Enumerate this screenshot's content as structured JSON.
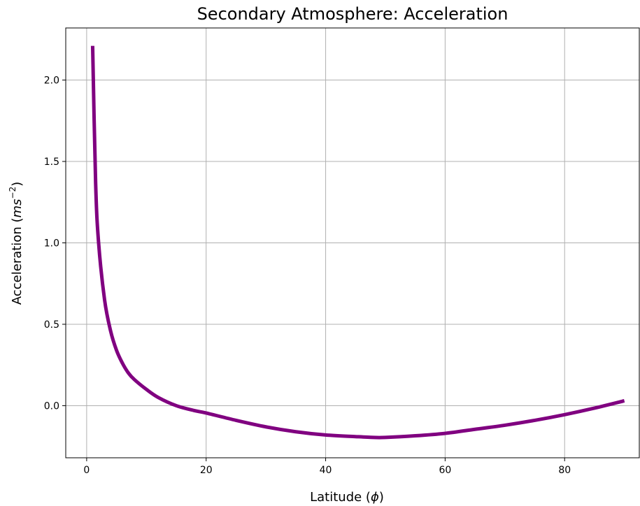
{
  "chart_data": {
    "type": "line",
    "title": "Secondary Atmosphere: Acceleration",
    "xlabel_text": "Latitude (",
    "xlabel_symbol": "ϕ",
    "xlabel_close": ")",
    "ylabel_text": "Acceleration (",
    "ylabel_unit": "ms",
    "ylabel_exp": "−2",
    "ylabel_close": ")",
    "xlim": [
      -3.5,
      92.5
    ],
    "ylim": [
      -0.32,
      2.32
    ],
    "xticks": [
      0,
      20,
      40,
      60,
      80
    ],
    "xtick_labels": [
      "0",
      "20",
      "40",
      "60",
      "80"
    ],
    "yticks": [
      0.0,
      0.5,
      1.0,
      1.5,
      2.0
    ],
    "ytick_labels": [
      "0.0",
      "0.5",
      "1.0",
      "1.5",
      "2.0"
    ],
    "grid": true,
    "series": [
      {
        "color": "#800080",
        "x": [
          1,
          1.5,
          2,
          3,
          4,
          5,
          6,
          7,
          8,
          10,
          12,
          15,
          18,
          20,
          25,
          30,
          35,
          40,
          45,
          48,
          50,
          55,
          60,
          65,
          70,
          75,
          80,
          85,
          90
        ],
        "y": [
          2.21,
          1.37,
          1.0,
          0.65,
          0.46,
          0.34,
          0.26,
          0.2,
          0.16,
          0.1,
          0.05,
          0.0,
          -0.03,
          -0.045,
          -0.09,
          -0.13,
          -0.16,
          -0.18,
          -0.19,
          -0.195,
          -0.195,
          -0.185,
          -0.17,
          -0.145,
          -0.12,
          -0.09,
          -0.055,
          -0.015,
          0.03
        ]
      }
    ]
  }
}
